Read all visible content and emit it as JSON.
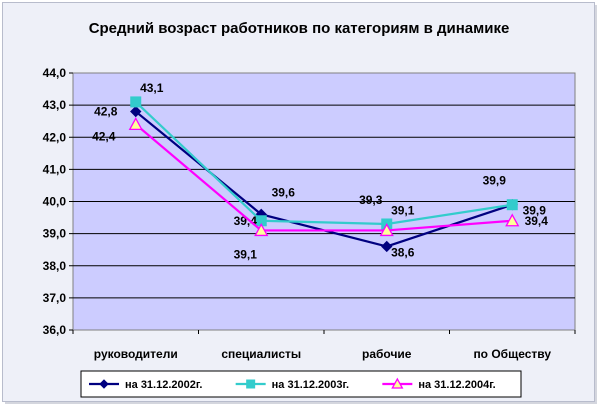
{
  "chart_data": {
    "type": "line",
    "title": "Средний возраст работников по категориям в динамике",
    "categories": [
      "руководители",
      "специалисты",
      "рабочие",
      "по Обществу"
    ],
    "ylim": [
      36.0,
      44.0
    ],
    "ytick_step": 1.0,
    "ytick_labels": [
      "36,0",
      "37,0",
      "38,0",
      "39,0",
      "40,0",
      "41,0",
      "42,0",
      "43,0",
      "44,0"
    ],
    "grid": true,
    "legend_position": "bottom",
    "series": [
      {
        "name": "на 31.12.2002г.",
        "values": [
          42.8,
          39.6,
          38.6,
          39.9
        ],
        "labels": [
          "42,8",
          "39,6",
          "38,6",
          "39,9"
        ],
        "color": "#000080",
        "marker": "diamond"
      },
      {
        "name": "на 31.12.2003г.",
        "values": [
          43.1,
          39.4,
          39.3,
          39.9
        ],
        "labels": [
          "43,1",
          "39,4",
          "39,3",
          "39,9"
        ],
        "color": "#33cccc",
        "marker": "square"
      },
      {
        "name": "на 31.12.2004г.",
        "values": [
          42.4,
          39.1,
          39.1,
          39.4
        ],
        "labels": [
          "42,4",
          "39,1",
          "39,1",
          "39,4"
        ],
        "color": "#ff00ff",
        "marker": "triangle",
        "marker_fill": "#ffff99"
      }
    ],
    "plot_background": "#ccccff"
  }
}
